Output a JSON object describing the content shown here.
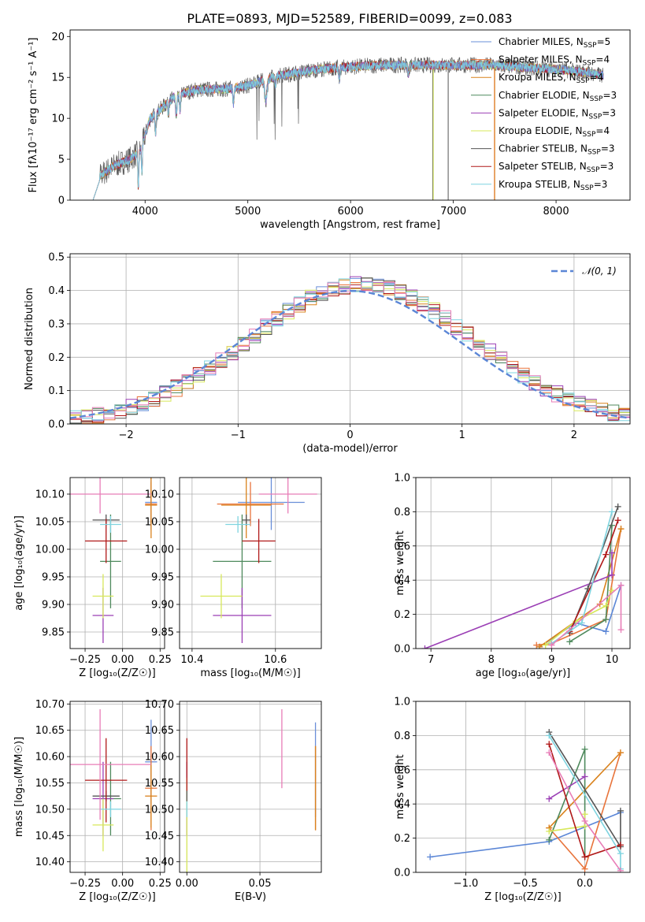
{
  "figure_title": "PLATE=0893, MJD=52589, FIBERID=0099, z=0.083",
  "colors": {
    "chabrier_miles": "#6a8fd9",
    "salpeter_miles": "#e8743b",
    "kroupa_miles": "#d9821c",
    "chabrier_elodie": "#4f8a5d",
    "salpeter_elodie": "#9b3fb5",
    "kroupa_elodie": "#d7e85a",
    "chabrier_stelib": "#555555",
    "salpeter_stelib": "#b01818",
    "kroupa_stelib": "#7fd4e0",
    "gaussian": "#5b86d6",
    "pink": "#e87db7",
    "grid": "#b0b0b0"
  },
  "chart_data": [
    {
      "id": "spectrum",
      "type": "line",
      "title": "PLATE=0893, MJD=52589, FIBERID=0099, z=0.083",
      "xlabel": "wavelength [Angstrom, rest frame]",
      "ylabel": "Flux [fλ10⁻¹⁷ erg cm⁻² s⁻¹ A⁻¹]",
      "xlim": [
        3270,
        8720
      ],
      "ylim": [
        0,
        20.8
      ],
      "xticks": [
        4000,
        5000,
        6000,
        7000,
        8000
      ],
      "yticks": [
        0,
        5,
        10,
        15,
        20
      ],
      "grid": false,
      "legend_position": "top-right",
      "legend": [
        {
          "label": "Chabrier MILES, N",
          "sub": "SSP",
          "suffix": "=5",
          "color_key": "chabrier_miles"
        },
        {
          "label": "Salpeter MILES, N",
          "sub": "SSP",
          "suffix": "=4",
          "color_key": "salpeter_miles"
        },
        {
          "label": "Kroupa MILES, N",
          "sub": "SSP",
          "suffix": "=4",
          "color_key": "kroupa_miles"
        },
        {
          "label": "Chabrier ELODIE, N",
          "sub": "SSP",
          "suffix": "=3",
          "color_key": "chabrier_elodie"
        },
        {
          "label": "Salpeter ELODIE, N",
          "sub": "SSP",
          "suffix": "=3",
          "color_key": "salpeter_elodie"
        },
        {
          "label": "Kroupa ELODIE, N",
          "sub": "SSP",
          "suffix": "=4",
          "color_key": "kroupa_elodie"
        },
        {
          "label": "Chabrier STELIB, N",
          "sub": "SSP",
          "suffix": "=3",
          "color_key": "chabrier_stelib"
        },
        {
          "label": "Salpeter STELIB, N",
          "sub": "SSP",
          "suffix": "=3",
          "color_key": "salpeter_stelib"
        },
        {
          "label": "Kroupa STELIB, N",
          "sub": "SSP",
          "suffix": "=3",
          "color_key": "kroupa_stelib"
        }
      ],
      "continuum": [
        [
          3530,
          0
        ],
        [
          3560,
          3
        ],
        [
          3700,
          4.2
        ],
        [
          3850,
          5
        ],
        [
          3950,
          6
        ],
        [
          4050,
          10
        ],
        [
          4300,
          12.8
        ],
        [
          4500,
          13.5
        ],
        [
          4800,
          13.6
        ],
        [
          5000,
          14
        ],
        [
          5300,
          15.2
        ],
        [
          5700,
          16
        ],
        [
          6000,
          16.3
        ],
        [
          6300,
          16.5
        ],
        [
          6600,
          16.5
        ],
        [
          7000,
          16.5
        ],
        [
          7300,
          16.5
        ],
        [
          7400,
          16.5
        ],
        [
          7700,
          16.2
        ],
        [
          8000,
          16
        ],
        [
          8300,
          15.6
        ],
        [
          8450,
          15.2
        ]
      ]
    },
    {
      "id": "residuals",
      "type": "line",
      "xlabel": "(data-model)/error",
      "ylabel": "Normed distribution",
      "xlim": [
        -2.5,
        2.5
      ],
      "ylim": [
        0,
        0.51
      ],
      "xticks": [
        -2,
        -1,
        0,
        1,
        2
      ],
      "yticks": [
        0.0,
        0.1,
        0.2,
        0.3,
        0.4,
        0.5
      ],
      "grid": true,
      "legend_position": "top-right",
      "legend_label": "𝒩(0, 1)",
      "gaussian": {
        "mean": 0,
        "sigma": 1
      },
      "histogram_peak_shift": 0.1,
      "histogram_bin_width": 0.1
    },
    {
      "id": "age-vs-metallicity",
      "type": "scatter",
      "xlabel": "Z [log₁₀(Z/Z☉)]",
      "ylabel": "age  [log₁₀(age/yr)]",
      "xlim": [
        -0.35,
        0.28
      ],
      "ylim": [
        9.82,
        10.13
      ],
      "xticks": [
        -0.25,
        0.0,
        0.25
      ],
      "yticks": [
        9.85,
        9.9,
        9.95,
        10.0,
        10.05,
        10.1
      ],
      "grid": true,
      "points": [
        {
          "color_key": "chabrier_miles",
          "x": 0.19,
          "xerr": 0.04,
          "y": 10.085,
          "yerr": 0.05
        },
        {
          "color_key": "salpeter_miles",
          "x": 0.19,
          "xerr": 0.04,
          "y": 10.082,
          "yerr": 0.04
        },
        {
          "color_key": "kroupa_miles",
          "x": 0.19,
          "xerr": 0.04,
          "y": 10.08,
          "yerr": 0.06
        },
        {
          "color_key": "chabrier_elodie",
          "x": -0.08,
          "xerr": 0.07,
          "y": 9.978,
          "yerr": 0.085
        },
        {
          "color_key": "salpeter_elodie",
          "x": -0.13,
          "xerr": 0.07,
          "y": 9.88,
          "yerr": 0.05
        },
        {
          "color_key": "kroupa_elodie",
          "x": -0.13,
          "xerr": 0.07,
          "y": 9.915,
          "yerr": 0.04
        },
        {
          "color_key": "chabrier_stelib",
          "x": -0.11,
          "xerr": 0.09,
          "y": 10.053,
          "yerr": 0.01
        },
        {
          "color_key": "salpeter_stelib",
          "x": -0.11,
          "xerr": 0.14,
          "y": 10.015,
          "yerr": 0.04
        },
        {
          "color_key": "kroupa_stelib",
          "x": -0.08,
          "xerr": 0.07,
          "y": 10.045,
          "yerr": 0.015
        },
        {
          "color_key": "pink",
          "x": -0.15,
          "xerr": 0.34,
          "y": 10.1,
          "yerr": 0.035
        }
      ]
    },
    {
      "id": "age-vs-mass",
      "type": "scatter",
      "xlabel": "mass [log₁₀(M/M☉)]",
      "ylabel": "",
      "xlim": [
        10.37,
        10.71
      ],
      "ylim": [
        9.82,
        10.13
      ],
      "xticks": [
        10.4,
        10.6
      ],
      "yticks": [
        9.85,
        9.9,
        9.95,
        10.0,
        10.05,
        10.1
      ],
      "grid": true,
      "points": [
        {
          "color_key": "chabrier_miles",
          "x": 10.59,
          "xerr": 0.08,
          "y": 10.085,
          "yerr": 0.05
        },
        {
          "color_key": "salpeter_miles",
          "x": 10.54,
          "xerr": 0.08,
          "y": 10.082,
          "yerr": 0.04
        },
        {
          "color_key": "kroupa_miles",
          "x": 10.53,
          "xerr": 0.06,
          "y": 10.08,
          "yerr": 0.06
        },
        {
          "color_key": "chabrier_elodie",
          "x": 10.52,
          "xerr": 0.07,
          "y": 9.978,
          "yerr": 0.085
        },
        {
          "color_key": "salpeter_elodie",
          "x": 10.52,
          "xerr": 0.07,
          "y": 9.88,
          "yerr": 0.05
        },
        {
          "color_key": "kroupa_elodie",
          "x": 10.47,
          "xerr": 0.05,
          "y": 9.915,
          "yerr": 0.04
        },
        {
          "color_key": "chabrier_stelib",
          "x": 10.53,
          "xerr": 0.01,
          "y": 10.053,
          "yerr": 0.01
        },
        {
          "color_key": "salpeter_stelib",
          "x": 10.56,
          "xerr": 0.04,
          "y": 10.015,
          "yerr": 0.04
        },
        {
          "color_key": "kroupa_stelib",
          "x": 10.51,
          "xerr": 0.03,
          "y": 10.045,
          "yerr": 0.015
        },
        {
          "color_key": "pink",
          "x": 10.63,
          "xerr": 0.07,
          "y": 10.1,
          "yerr": 0.035
        }
      ]
    },
    {
      "id": "mass-weight-vs-age",
      "type": "line",
      "xlabel": "age  [log₁₀(age/yr)]",
      "ylabel": "mass weight",
      "xlim": [
        6.75,
        10.3
      ],
      "ylim": [
        0,
        1.0
      ],
      "xticks": [
        7,
        8,
        9,
        10
      ],
      "yticks": [
        0.0,
        0.2,
        0.4,
        0.6,
        0.8,
        1.0
      ],
      "grid": true,
      "series": [
        {
          "color_key": "gaussian",
          "points": [
            [
              8.8,
              0.01
            ],
            [
              9.4,
              0.15
            ],
            [
              9.9,
              0.1
            ],
            [
              10.15,
              0.37
            ]
          ]
        },
        {
          "color_key": "salpeter_miles",
          "points": [
            [
              8.75,
              0.02
            ],
            [
              9.0,
              0.03
            ],
            [
              9.9,
              0.17
            ],
            [
              10.15,
              0.7
            ]
          ]
        },
        {
          "color_key": "kroupa_miles",
          "points": [
            [
              8.8,
              0.01
            ],
            [
              9.8,
              0.26
            ],
            [
              10.15,
              0.7
            ]
          ]
        },
        {
          "color_key": "chabrier_elodie",
          "points": [
            [
              9.3,
              0.04
            ],
            [
              9.9,
              0.17
            ],
            [
              10.0,
              0.72
            ]
          ]
        },
        {
          "color_key": "salpeter_elodie",
          "points": [
            [
              6.9,
              0.0
            ],
            [
              10.0,
              0.43
            ],
            [
              10.0,
              0.56
            ]
          ]
        },
        {
          "color_key": "kroupa_elodie",
          "points": [
            [
              8.9,
              0.02
            ],
            [
              9.4,
              0.16
            ],
            [
              9.9,
              0.25
            ],
            [
              10.0,
              0.34
            ]
          ]
        },
        {
          "color_key": "chabrier_stelib",
          "points": [
            [
              9.3,
              0.09
            ],
            [
              9.6,
              0.35
            ],
            [
              10.1,
              0.83
            ]
          ]
        },
        {
          "color_key": "salpeter_stelib",
          "points": [
            [
              9.3,
              0.1
            ],
            [
              9.9,
              0.55
            ],
            [
              10.1,
              0.75
            ]
          ]
        },
        {
          "color_key": "kroupa_stelib",
          "points": [
            [
              9.0,
              0.03
            ],
            [
              9.5,
              0.15
            ],
            [
              10.0,
              0.8
            ]
          ]
        },
        {
          "color_key": "pink",
          "points": [
            [
              9.0,
              0.02
            ],
            [
              10.15,
              0.37
            ],
            [
              10.15,
              0.11
            ]
          ]
        }
      ]
    },
    {
      "id": "mass-vs-metallicity",
      "type": "scatter",
      "xlabel": "Z [log₁₀(Z/Z☉)]",
      "ylabel": "mass [log₁₀(M/M☉)]",
      "xlim": [
        -0.35,
        0.28
      ],
      "ylim": [
        10.38,
        10.705
      ],
      "xticks": [
        -0.25,
        0.0,
        0.25
      ],
      "yticks": [
        10.4,
        10.45,
        10.5,
        10.55,
        10.6,
        10.65,
        10.7
      ],
      "grid": true,
      "points": [
        {
          "color_key": "chabrier_miles",
          "x": 0.19,
          "xerr": 0.04,
          "y": 10.59,
          "yerr": 0.08
        },
        {
          "color_key": "salpeter_miles",
          "x": 0.19,
          "xerr": 0.04,
          "y": 10.54,
          "yerr": 0.08
        },
        {
          "color_key": "kroupa_miles",
          "x": 0.19,
          "xerr": 0.04,
          "y": 10.525,
          "yerr": 0.06
        },
        {
          "color_key": "chabrier_elodie",
          "x": -0.08,
          "xerr": 0.07,
          "y": 10.52,
          "yerr": 0.07
        },
        {
          "color_key": "salpeter_elodie",
          "x": -0.13,
          "xerr": 0.07,
          "y": 10.52,
          "yerr": 0.07
        },
        {
          "color_key": "kroupa_elodie",
          "x": -0.13,
          "xerr": 0.07,
          "y": 10.47,
          "yerr": 0.05
        },
        {
          "color_key": "chabrier_stelib",
          "x": -0.11,
          "xerr": 0.09,
          "y": 10.525,
          "yerr": 0.01
        },
        {
          "color_key": "salpeter_stelib",
          "x": -0.11,
          "xerr": 0.14,
          "y": 10.555,
          "yerr": 0.08
        },
        {
          "color_key": "kroupa_stelib",
          "x": -0.08,
          "xerr": 0.07,
          "y": 10.5,
          "yerr": 0.015
        },
        {
          "color_key": "pink",
          "x": -0.15,
          "xerr": 0.34,
          "y": 10.585,
          "yerr": 0.105
        }
      ]
    },
    {
      "id": "mass-vs-extinction",
      "type": "scatter",
      "xlabel": "E(B-V)",
      "ylabel": "",
      "xlim": [
        -0.005,
        0.092
      ],
      "ylim": [
        10.38,
        10.705
      ],
      "xticks": [
        0.0,
        0.05
      ],
      "yticks": [
        10.4,
        10.45,
        10.5,
        10.55,
        10.6,
        10.65,
        10.7
      ],
      "grid": true,
      "points": [
        {
          "color_key": "chabrier_miles",
          "x": 0.088,
          "xerr": 0,
          "y": 10.575,
          "yerr": 0.09
        },
        {
          "color_key": "salpeter_miles",
          "x": 0.088,
          "xerr": 0,
          "y": 10.54,
          "yerr": 0.08
        },
        {
          "color_key": "kroupa_miles",
          "x": 0.088,
          "xerr": 0,
          "y": 10.54,
          "yerr": 0.08
        },
        {
          "color_key": "chabrier_elodie",
          "x": 0.0,
          "xerr": 0,
          "y": 10.52,
          "yerr": 0.07
        },
        {
          "color_key": "salpeter_elodie",
          "x": 0.0,
          "xerr": 0,
          "y": 10.52,
          "yerr": 0.07
        },
        {
          "color_key": "kroupa_elodie",
          "x": 0.0,
          "xerr": 0,
          "y": 10.47,
          "yerr": 0.09
        },
        {
          "color_key": "chabrier_stelib",
          "x": 0.0,
          "xerr": 0,
          "y": 10.525,
          "yerr": 0.01
        },
        {
          "color_key": "salpeter_stelib",
          "x": 0.0,
          "xerr": 0,
          "y": 10.585,
          "yerr": 0.05
        },
        {
          "color_key": "kroupa_stelib",
          "x": 0.0,
          "xerr": 0,
          "y": 10.5,
          "yerr": 0.015
        },
        {
          "color_key": "pink",
          "x": 0.065,
          "xerr": 0,
          "y": 10.615,
          "yerr": 0.075
        }
      ]
    },
    {
      "id": "mass-weight-vs-metallicity",
      "type": "line",
      "xlabel": "Z [log₁₀(Z/Z☉)]",
      "ylabel": "mass weight",
      "xlim": [
        -1.42,
        0.38
      ],
      "ylim": [
        0,
        1.0
      ],
      "xticks": [
        -1.0,
        -0.5,
        0.0
      ],
      "yticks": [
        0.0,
        0.2,
        0.4,
        0.6,
        0.8,
        1.0
      ],
      "grid": true,
      "series": [
        {
          "color_key": "gaussian",
          "points": [
            [
              -1.3,
              0.09
            ],
            [
              -0.3,
              0.18
            ],
            [
              0.3,
              0.35
            ]
          ]
        },
        {
          "color_key": "salpeter_miles",
          "points": [
            [
              -0.3,
              0.26
            ],
            [
              0.0,
              0.02
            ],
            [
              0.3,
              0.7
            ]
          ]
        },
        {
          "color_key": "kroupa_miles",
          "points": [
            [
              -0.3,
              0.26
            ],
            [
              0.3,
              0.7
            ]
          ]
        },
        {
          "color_key": "chabrier_elodie",
          "points": [
            [
              -0.3,
              0.19
            ],
            [
              0.0,
              0.72
            ],
            [
              0.0,
              0.09
            ]
          ]
        },
        {
          "color_key": "salpeter_elodie",
          "points": [
            [
              -0.3,
              0.43
            ],
            [
              0.0,
              0.56
            ]
          ]
        },
        {
          "color_key": "kroupa_elodie",
          "points": [
            [
              -0.3,
              0.24
            ],
            [
              0.0,
              0.27
            ],
            [
              0.0,
              0.34
            ]
          ]
        },
        {
          "color_key": "chabrier_stelib",
          "points": [
            [
              -0.3,
              0.82
            ],
            [
              0.3,
              0.15
            ],
            [
              0.3,
              0.36
            ]
          ]
        },
        {
          "color_key": "salpeter_stelib",
          "points": [
            [
              -0.3,
              0.75
            ],
            [
              0.0,
              0.09
            ],
            [
              0.3,
              0.16
            ]
          ]
        },
        {
          "color_key": "kroupa_stelib",
          "points": [
            [
              -0.3,
              0.8
            ],
            [
              0.3,
              0.11
            ],
            [
              0.3,
              0.02
            ]
          ]
        },
        {
          "color_key": "pink",
          "points": [
            [
              -0.3,
              0.7
            ],
            [
              0.0,
              0.3
            ],
            [
              0.3,
              0.01
            ]
          ]
        }
      ]
    }
  ]
}
